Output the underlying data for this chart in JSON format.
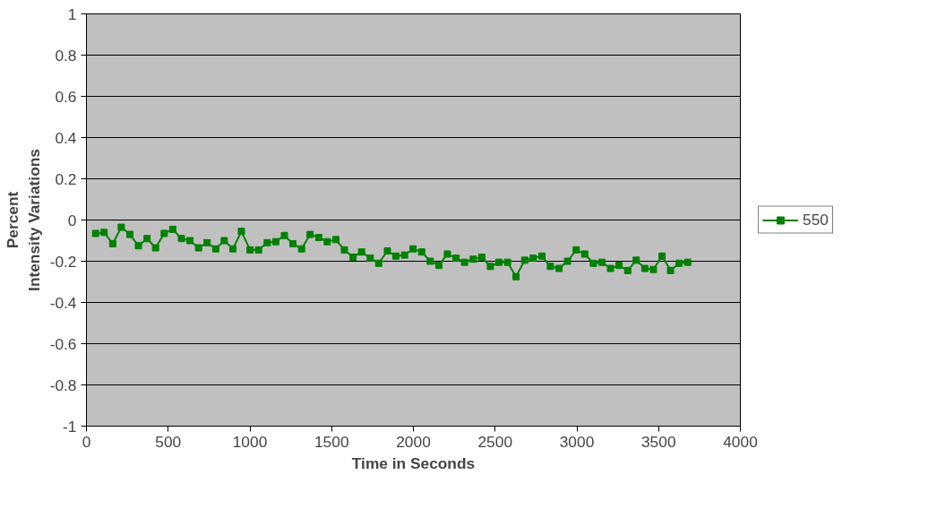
{
  "chart_data": {
    "type": "line",
    "xlabel": "Time in Seconds",
    "ylabel": "Percent\nIntensity Variations",
    "x": [
      56,
      108,
      161,
      213,
      266,
      318,
      371,
      423,
      476,
      528,
      581,
      633,
      686,
      738,
      791,
      843,
      896,
      948,
      1001,
      1053,
      1106,
      1158,
      1211,
      1263,
      1316,
      1368,
      1421,
      1473,
      1526,
      1578,
      1631,
      1683,
      1736,
      1788,
      1841,
      1893,
      1946,
      1998,
      2051,
      2103,
      2156,
      2208,
      2261,
      2313,
      2366,
      2418,
      2471,
      2523,
      2576,
      2628,
      2681,
      2733,
      2786,
      2838,
      2891,
      2943,
      2996,
      3048,
      3101,
      3153,
      3206,
      3258,
      3311,
      3363,
      3416,
      3468,
      3521,
      3573,
      3626,
      3678
    ],
    "series": [
      {
        "name": "550",
        "color": "#008000",
        "values": [
          -0.065,
          -0.06,
          -0.115,
          -0.035,
          -0.07,
          -0.125,
          -0.09,
          -0.135,
          -0.065,
          -0.045,
          -0.09,
          -0.1,
          -0.135,
          -0.11,
          -0.14,
          -0.1,
          -0.14,
          -0.055,
          -0.145,
          -0.145,
          -0.11,
          -0.105,
          -0.075,
          -0.115,
          -0.14,
          -0.07,
          -0.085,
          -0.105,
          -0.095,
          -0.145,
          -0.18,
          -0.155,
          -0.185,
          -0.21,
          -0.15,
          -0.175,
          -0.17,
          -0.14,
          -0.155,
          -0.2,
          -0.22,
          -0.165,
          -0.185,
          -0.205,
          -0.19,
          -0.18,
          -0.225,
          -0.205,
          -0.205,
          -0.275,
          -0.195,
          -0.185,
          -0.175,
          -0.225,
          -0.235,
          -0.2,
          -0.145,
          -0.165,
          -0.21,
          -0.205,
          -0.235,
          -0.22,
          -0.245,
          -0.195,
          -0.235,
          -0.24,
          -0.175,
          -0.245,
          -0.21,
          -0.205
        ]
      }
    ],
    "xlim": [
      0,
      4000
    ],
    "xticks": [
      0,
      500,
      1000,
      1500,
      2000,
      2500,
      3000,
      3500,
      4000
    ],
    "ylim": [
      -1,
      1
    ],
    "yticks": [
      {
        "value": -1,
        "label": "-1"
      },
      {
        "value": -0.8,
        "label": "-0.8"
      },
      {
        "value": -0.6,
        "label": "-0.6"
      },
      {
        "value": -0.4,
        "label": "-0.4"
      },
      {
        "value": -0.2,
        "label": "-0.2"
      },
      {
        "value": 0,
        "label": "0"
      },
      {
        "value": 0.2,
        "label": "0.2"
      },
      {
        "value": 0.4,
        "label": "0.4"
      },
      {
        "value": 0.6,
        "label": "0.6"
      },
      {
        "value": 0.8,
        "label": "0.8"
      },
      {
        "value": 1,
        "label": "1"
      }
    ],
    "grid": "y",
    "legend": "right",
    "marker": "square",
    "line_style": "solid"
  }
}
